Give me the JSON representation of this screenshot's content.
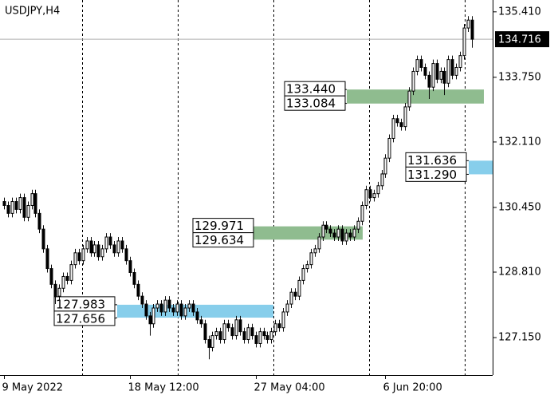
{
  "chart_data": {
    "type": "candlestick",
    "title": "USDJPY,H4",
    "categories": [
      "9 May 2022",
      null,
      null,
      null,
      null,
      null,
      null,
      null,
      null,
      null,
      null,
      null,
      null,
      null,
      null,
      null,
      null,
      null,
      null,
      null,
      null,
      null,
      null,
      null,
      null,
      null,
      null,
      null,
      null,
      null,
      null,
      null,
      "18 May 12:00",
      null,
      null,
      null,
      null,
      null,
      null,
      null,
      null,
      null,
      null,
      null,
      null,
      null,
      null,
      null,
      null,
      null,
      null,
      null,
      null,
      null,
      null,
      null,
      null,
      null,
      null,
      null,
      null,
      null,
      null,
      null,
      "27 May 04:00",
      null,
      null,
      null,
      null,
      null,
      null,
      null,
      null,
      null,
      null,
      null,
      null,
      null,
      null,
      null,
      null,
      null,
      null,
      null,
      null,
      null,
      null,
      null,
      null,
      null,
      null,
      null,
      null,
      null,
      null,
      null,
      null,
      "6 Jun 20:00",
      null,
      null,
      null,
      null,
      null,
      null,
      null,
      null,
      null,
      null,
      null,
      null,
      null,
      null,
      null,
      null,
      null,
      null,
      null,
      null,
      null,
      null
    ],
    "open": [
      130.6,
      130.5,
      130.3,
      130.6,
      130.4,
      130.7,
      130.2,
      130.5,
      130.8,
      130.3,
      129.9,
      129.4,
      128.9,
      128.5,
      128.2,
      128.4,
      128.7,
      128.6,
      129.0,
      129.3,
      129.1,
      129.4,
      129.6,
      129.3,
      129.5,
      129.2,
      129.4,
      129.7,
      129.5,
      129.3,
      129.6,
      129.4,
      129.1,
      128.8,
      128.5,
      128.2,
      128.0,
      127.7,
      127.5,
      127.9,
      128.0,
      127.8,
      128.1,
      127.9,
      127.8,
      128.0,
      127.7,
      127.9,
      128.0,
      127.8,
      127.6,
      127.5,
      127.1,
      126.9,
      127.2,
      127.3,
      127.1,
      127.5,
      127.4,
      127.2,
      127.6,
      127.3,
      127.1,
      127.4,
      127.2,
      127.0,
      127.3,
      127.2,
      127.1,
      127.3,
      127.5,
      127.4,
      127.8,
      128.0,
      128.3,
      128.2,
      128.6,
      128.9,
      129.0,
      129.3,
      129.4,
      129.7,
      130.0,
      129.9,
      129.8,
      129.7,
      129.9,
      129.6,
      129.8,
      129.7,
      129.9,
      130.1,
      130.5,
      130.9,
      130.7,
      130.8,
      131.0,
      131.3,
      131.7,
      132.2,
      132.7,
      132.6,
      132.5,
      133.0,
      133.4,
      133.9,
      134.2,
      134.0,
      133.8,
      133.5,
      134.1,
      133.7,
      133.9,
      133.6,
      134.2,
      133.8,
      134.0,
      134.3,
      135.0,
      135.2
    ],
    "high": [
      130.7,
      130.6,
      130.7,
      130.7,
      130.8,
      130.8,
      130.6,
      130.9,
      130.9,
      130.4,
      130.0,
      129.5,
      129.0,
      128.6,
      128.5,
      128.8,
      128.8,
      129.1,
      129.4,
      129.4,
      129.5,
      129.7,
      129.7,
      129.6,
      129.6,
      129.5,
      129.8,
      129.8,
      129.6,
      129.7,
      129.7,
      129.5,
      129.2,
      128.9,
      128.6,
      128.3,
      128.1,
      127.8,
      128.0,
      128.1,
      128.1,
      128.2,
      128.2,
      128.0,
      128.1,
      128.1,
      128.0,
      128.1,
      128.1,
      127.9,
      127.7,
      127.6,
      127.2,
      127.3,
      127.4,
      127.4,
      127.6,
      127.6,
      127.5,
      127.7,
      127.7,
      127.4,
      127.5,
      127.5,
      127.3,
      127.4,
      127.4,
      127.3,
      127.4,
      127.6,
      127.6,
      127.9,
      128.1,
      128.4,
      128.4,
      128.7,
      129.0,
      129.1,
      129.4,
      129.5,
      129.8,
      130.1,
      130.1,
      130.0,
      129.9,
      130.0,
      130.0,
      129.9,
      129.9,
      130.0,
      130.2,
      130.6,
      131.0,
      131.0,
      130.9,
      131.1,
      131.4,
      131.8,
      132.3,
      132.8,
      132.8,
      132.7,
      133.1,
      133.5,
      134.0,
      134.3,
      134.3,
      134.1,
      133.9,
      134.2,
      134.2,
      134.0,
      134.0,
      134.3,
      134.3,
      134.1,
      134.4,
      135.1,
      135.3,
      135.3
    ],
    "low": [
      130.4,
      130.2,
      130.2,
      130.3,
      130.3,
      130.1,
      130.1,
      130.4,
      130.2,
      129.8,
      129.3,
      128.8,
      128.4,
      128.0,
      128.1,
      128.3,
      128.5,
      128.5,
      128.9,
      129.0,
      129.0,
      129.3,
      129.2,
      129.2,
      129.1,
      129.1,
      129.3,
      129.4,
      129.2,
      129.2,
      129.3,
      129.0,
      128.7,
      128.4,
      128.1,
      127.9,
      127.6,
      127.2,
      127.4,
      127.8,
      127.7,
      127.7,
      127.8,
      127.7,
      127.7,
      127.6,
      127.6,
      127.8,
      127.7,
      127.5,
      127.4,
      127.0,
      126.6,
      126.8,
      127.1,
      127.0,
      127.0,
      127.3,
      127.1,
      127.1,
      127.2,
      127.0,
      127.0,
      127.1,
      126.9,
      126.9,
      127.1,
      127.0,
      127.0,
      127.2,
      127.3,
      127.3,
      127.7,
      127.9,
      128.1,
      128.1,
      128.5,
      128.8,
      128.9,
      129.2,
      129.3,
      129.6,
      129.8,
      129.7,
      129.6,
      129.6,
      129.5,
      129.5,
      129.6,
      129.6,
      129.8,
      130.0,
      130.4,
      130.6,
      130.6,
      130.7,
      130.9,
      131.2,
      131.6,
      132.1,
      132.5,
      132.4,
      132.4,
      132.9,
      133.3,
      133.8,
      133.9,
      133.7,
      133.2,
      133.4,
      133.6,
      133.6,
      133.3,
      133.5,
      133.7,
      133.7,
      133.9,
      134.2,
      134.9,
      134.5
    ],
    "close": [
      130.5,
      130.3,
      130.6,
      130.4,
      130.7,
      130.2,
      130.5,
      130.8,
      130.3,
      129.9,
      129.4,
      128.9,
      128.5,
      128.2,
      128.4,
      128.7,
      128.6,
      129.0,
      129.3,
      129.1,
      129.4,
      129.6,
      129.3,
      129.5,
      129.2,
      129.4,
      129.7,
      129.5,
      129.3,
      129.6,
      129.4,
      129.1,
      128.8,
      128.5,
      128.2,
      128.0,
      127.7,
      127.5,
      127.9,
      128.0,
      127.8,
      128.1,
      127.9,
      127.8,
      128.0,
      127.7,
      127.9,
      128.0,
      127.8,
      127.6,
      127.5,
      127.1,
      126.9,
      127.2,
      127.3,
      127.1,
      127.5,
      127.4,
      127.2,
      127.6,
      127.3,
      127.1,
      127.4,
      127.2,
      127.0,
      127.3,
      127.2,
      127.1,
      127.3,
      127.5,
      127.4,
      127.8,
      128.0,
      128.3,
      128.2,
      128.6,
      128.9,
      129.0,
      129.3,
      129.4,
      129.7,
      130.0,
      129.9,
      129.8,
      129.7,
      129.9,
      129.6,
      129.8,
      129.7,
      129.9,
      130.1,
      130.5,
      130.9,
      130.7,
      130.8,
      131.0,
      131.3,
      131.7,
      132.2,
      132.7,
      132.6,
      132.5,
      133.0,
      133.4,
      133.9,
      134.2,
      134.0,
      133.8,
      133.5,
      134.1,
      133.7,
      133.9,
      133.6,
      134.2,
      133.8,
      134.0,
      134.3,
      135.0,
      135.2,
      134.716
    ],
    "last_price": 134.716,
    "zones": [
      {
        "top": {
          "value": 133.44,
          "label": "133.440"
        },
        "bottom": 133.084,
        "color": "#8fbc8f"
      },
      {
        "top": 131.636,
        "bottom": {
          "value": 131.29,
          "label": "131.290"
        },
        "color": "#87ceeb"
      },
      {
        "top": 129.971,
        "bottom": 129.634,
        "color": "#8fbc8f"
      },
      {
        "top": 127.983,
        "bottom": 127.656,
        "color": "#87ceeb"
      }
    ],
    "ylim": [
      126.2,
      135.71
    ],
    "yticks": [
      {
        "value": 127.15,
        "label": "127.150"
      },
      {
        "value": 128.81,
        "label": "128.810"
      },
      {
        "value": 130.45,
        "label": "130.450"
      },
      {
        "value": 132.11,
        "label": "132.110"
      },
      {
        "value": 133.75,
        "label": "133.750"
      },
      {
        "value": 135.41,
        "label": "135.410"
      }
    ],
    "bullish_color": "#ffffff",
    "bearish_color": "#000000"
  }
}
